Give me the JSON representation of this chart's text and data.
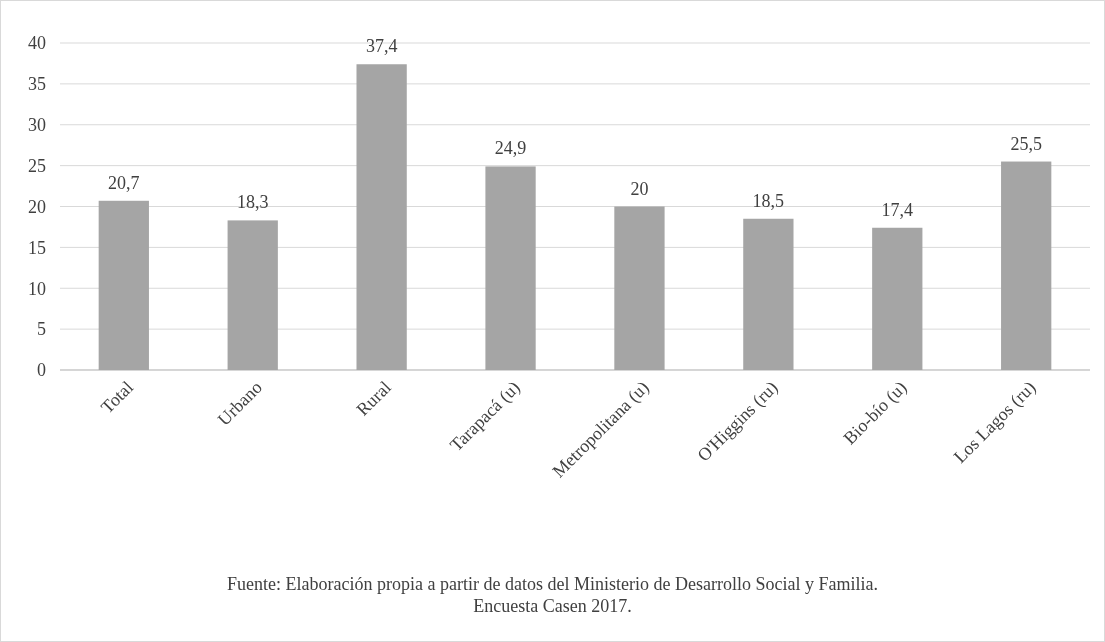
{
  "chart_data": {
    "type": "bar",
    "categories": [
      "Total",
      "Urbano",
      "Rural",
      "Tarapacá (u)",
      "Metropolitana (u)",
      "O'Higgins (ru)",
      "Bio-bío (u)",
      "Los Lagos (ru)"
    ],
    "values": [
      20.7,
      18.3,
      37.4,
      24.9,
      20,
      18.5,
      17.4,
      25.5
    ],
    "value_labels": [
      "20,7",
      "18,3",
      "37,4",
      "24,9",
      "20",
      "18,5",
      "17,4",
      "25,5"
    ],
    "color": "#a5a5a5",
    "ylim": [
      0,
      40
    ],
    "yticks": [
      0,
      5,
      10,
      15,
      20,
      25,
      30,
      35,
      40
    ],
    "grid": "y",
    "annotations": [
      "Fuente: Elaboración propia a partir de datos del Ministerio de Desarrollo Social y Familia.",
      "Encuesta Casen 2017."
    ]
  }
}
